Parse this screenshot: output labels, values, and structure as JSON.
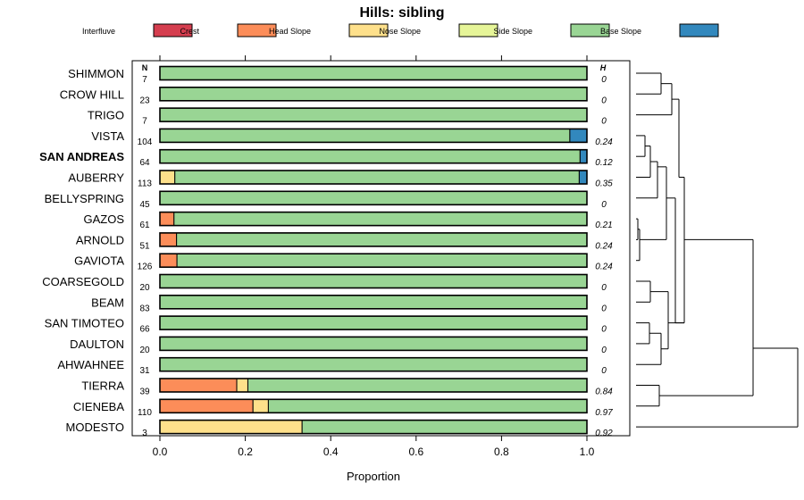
{
  "chart_data": {
    "type": "bar",
    "stacked": true,
    "orientation": "horizontal",
    "title": "Hills: sibling",
    "xlabel": "Proportion",
    "xlim": [
      0,
      1
    ],
    "x_ticks": [
      "0.0",
      "0.2",
      "0.4",
      "0.6",
      "0.8",
      "1.0"
    ],
    "n_header": "N",
    "h_header": "H",
    "series": [
      {
        "name": "Interfluve",
        "color": "#D53E4F"
      },
      {
        "name": "Crest",
        "color": "#FC8D59"
      },
      {
        "name": "Head Slope",
        "color": "#FEE08B"
      },
      {
        "name": "Nose Slope",
        "color": "#E6F598"
      },
      {
        "name": "Side Slope",
        "color": "#99D594"
      },
      {
        "name": "Base Slope",
        "color": "#3288BD"
      }
    ],
    "rows": [
      {
        "label": "SHIMMON",
        "n": "7",
        "h": "0",
        "values": [
          0,
          0,
          0,
          0,
          1.0,
          0
        ],
        "bold": false
      },
      {
        "label": "CROW HILL",
        "n": "23",
        "h": "0",
        "values": [
          0,
          0,
          0,
          0,
          1.0,
          0
        ],
        "bold": false
      },
      {
        "label": "TRIGO",
        "n": "7",
        "h": "0",
        "values": [
          0,
          0,
          0,
          0,
          1.0,
          0
        ],
        "bold": false
      },
      {
        "label": "VISTA",
        "n": "104",
        "h": "0.24",
        "values": [
          0,
          0,
          0,
          0,
          0.96,
          0.04
        ],
        "bold": false
      },
      {
        "label": "SAN ANDREAS",
        "n": "64",
        "h": "0.12",
        "values": [
          0,
          0,
          0,
          0,
          0.984,
          0.016
        ],
        "bold": true
      },
      {
        "label": "AUBERRY",
        "n": "113",
        "h": "0.35",
        "values": [
          0,
          0,
          0.035,
          0,
          0.947,
          0.018
        ],
        "bold": false
      },
      {
        "label": "BELLYSPRING",
        "n": "45",
        "h": "0",
        "values": [
          0,
          0,
          0,
          0,
          1.0,
          0
        ],
        "bold": false
      },
      {
        "label": "GAZOS",
        "n": "61",
        "h": "0.21",
        "values": [
          0,
          0.033,
          0,
          0,
          0.967,
          0
        ],
        "bold": false
      },
      {
        "label": "ARNOLD",
        "n": "51",
        "h": "0.24",
        "values": [
          0,
          0.039,
          0,
          0,
          0.961,
          0
        ],
        "bold": false
      },
      {
        "label": "GAVIOTA",
        "n": "126",
        "h": "0.24",
        "values": [
          0,
          0.04,
          0,
          0,
          0.96,
          0
        ],
        "bold": false
      },
      {
        "label": "COARSEGOLD",
        "n": "20",
        "h": "0",
        "values": [
          0,
          0,
          0,
          0,
          1.0,
          0
        ],
        "bold": false
      },
      {
        "label": "BEAM",
        "n": "83",
        "h": "0",
        "values": [
          0,
          0,
          0,
          0,
          1.0,
          0
        ],
        "bold": false
      },
      {
        "label": "SAN TIMOTEO",
        "n": "66",
        "h": "0",
        "values": [
          0,
          0,
          0,
          0,
          1.0,
          0
        ],
        "bold": false
      },
      {
        "label": "DAULTON",
        "n": "20",
        "h": "0",
        "values": [
          0,
          0,
          0,
          0,
          1.0,
          0
        ],
        "bold": false
      },
      {
        "label": "AHWAHNEE",
        "n": "31",
        "h": "0",
        "values": [
          0,
          0,
          0,
          0,
          1.0,
          0
        ],
        "bold": false
      },
      {
        "label": "TIERRA",
        "n": "39",
        "h": "0.84",
        "values": [
          0,
          0.18,
          0.026,
          0,
          0.794,
          0
        ],
        "bold": false
      },
      {
        "label": "CIENEBA",
        "n": "110",
        "h": "0.97",
        "values": [
          0,
          0.218,
          0.036,
          0,
          0.746,
          0
        ],
        "bold": false
      },
      {
        "label": "MODESTO",
        "n": "3",
        "h": "0.92",
        "values": [
          0,
          0,
          0.333,
          0,
          0.667,
          0
        ],
        "bold": false
      }
    ],
    "dendrogram": true
  }
}
